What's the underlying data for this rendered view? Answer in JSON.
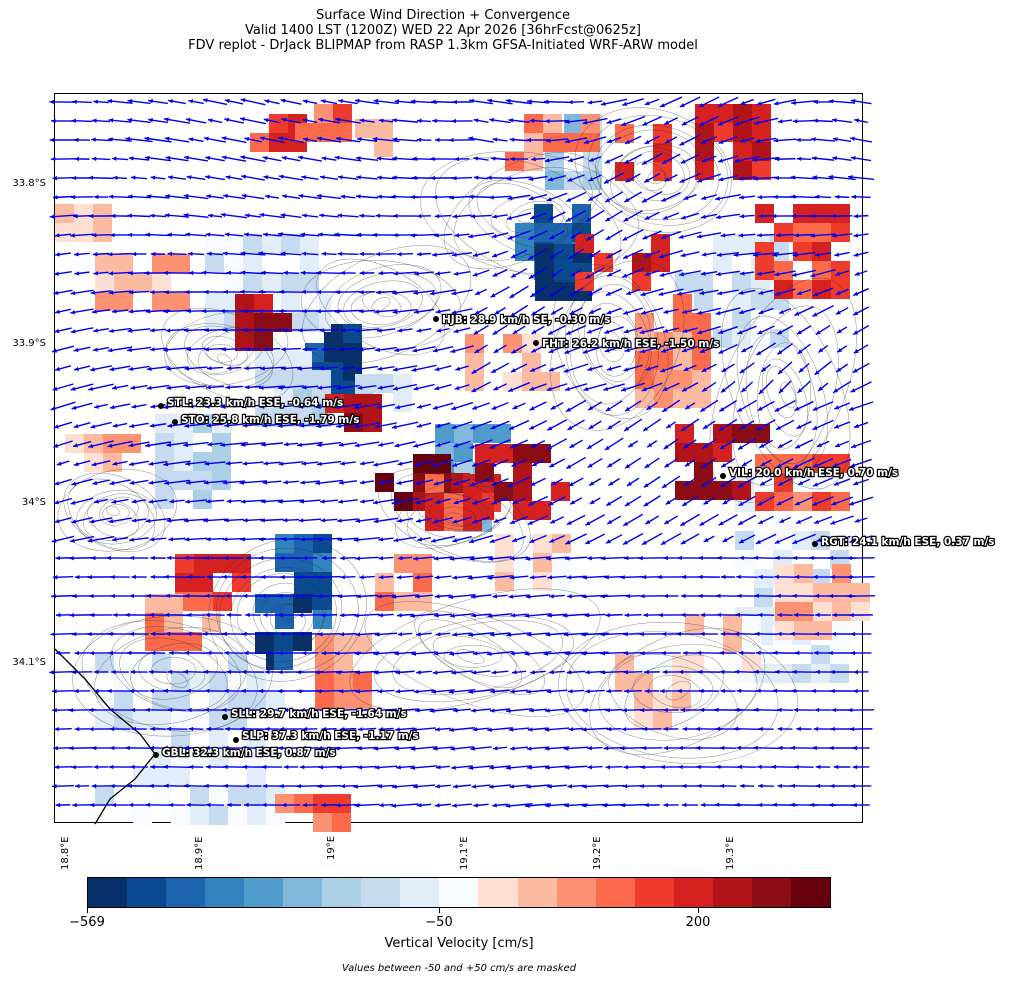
{
  "title": {
    "line1": "Surface Wind Direction + Convergence",
    "line2": "Valid 1400 LST (1200Z) WED 22 Apr 2026 [36hrFcst@0625z]",
    "line3": "FDV replot - DrJack BLIPMAP from RASP 1.3km GFSA-Initiated WRF-ARW model"
  },
  "axes": {
    "lat_labels": [
      "33.8°S",
      "33.9°S",
      "34°S",
      "34.1°S"
    ],
    "lon_labels": [
      "18.8°E",
      "18.9°E",
      "19°E",
      "19.1°E",
      "19.2°E",
      "19.3°E"
    ]
  },
  "stations": [
    {
      "code": "HJB",
      "label": "HJB: 28.9 km/h SE, -0.30 m/s"
    },
    {
      "code": "FHT",
      "label": "FHT: 26.2 km/h ESE, -1.50 m/s"
    },
    {
      "code": "STL",
      "label": "STL: 23.3 km/h ESE, -0.64 m/s"
    },
    {
      "code": "STO",
      "label": "STO: 25.8 km/h ESE, -1.79 m/s"
    },
    {
      "code": "VIL",
      "label": "VIL: 20.0 km/h ESE, 0.70 m/s"
    },
    {
      "code": "RGT",
      "label": "RGT: 24.1 km/h ESE, 0.37 m/s"
    },
    {
      "code": "SLL",
      "label": "SLL: 29.7 km/h ESE, -1.64 m/s"
    },
    {
      "code": "SLP",
      "label": "SLP: 37.3 km/h ESE, -1.17 m/s"
    },
    {
      "code": "GBL",
      "label": "GBL: 32.3 km/h ESE, 0.87 m/s"
    }
  ],
  "colorbar": {
    "label": "Vertical Velocity [cm/s]",
    "tick_labels": [
      "−569",
      "−50",
      "200"
    ],
    "colors": [
      "#08306b",
      "#0a4a90",
      "#1c64ad",
      "#3383be",
      "#4f9bcb",
      "#80b7db",
      "#abd0e6",
      "#c6dbef",
      "#e1edf8",
      "#f7fbff",
      "#fee0d2",
      "#fcbba1",
      "#fc9272",
      "#fb6a4a",
      "#ef3b2c",
      "#d52221",
      "#b11318",
      "#8c0c15",
      "#67000d"
    ]
  },
  "footnote": "Values between -50 and +50 cm/s are masked",
  "wind_color": "#0000ee",
  "contour_color": "#303030",
  "coastline_color": "#000000"
}
